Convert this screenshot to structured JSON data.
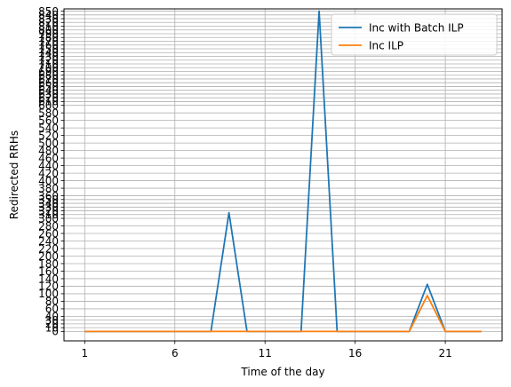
{
  "chart_data": {
    "type": "line",
    "xlabel": "Time of the day",
    "ylabel": "Redirected RRHs",
    "xlim": [
      -0.15,
      24.15
    ],
    "ylim": [
      -25,
      856
    ],
    "xticks": [
      1,
      6,
      11,
      16,
      21
    ],
    "yticks": [
      0,
      10,
      20,
      30,
      40,
      60,
      80,
      100,
      120,
      140,
      160,
      180,
      200,
      220,
      240,
      260,
      280,
      300,
      310,
      320,
      330,
      340,
      350,
      360,
      380,
      400,
      420,
      440,
      460,
      480,
      500,
      520,
      540,
      560,
      580,
      600,
      610,
      620,
      630,
      640,
      650,
      660,
      670,
      680,
      690,
      700,
      710,
      720,
      730,
      740,
      750,
      760,
      770,
      780,
      790,
      800,
      810,
      820,
      830,
      840,
      850
    ],
    "grid": true,
    "legend_position": "top-right",
    "x": [
      1,
      2,
      3,
      4,
      5,
      6,
      7,
      8,
      9,
      10,
      11,
      12,
      13,
      14,
      15,
      16,
      17,
      18,
      19,
      20,
      21,
      22,
      23
    ],
    "series": [
      {
        "name": "Inc with Batch ILP",
        "color": "#1f77b4",
        "values": [
          0,
          0,
          0,
          0,
          0,
          0,
          0,
          0,
          315,
          0,
          0,
          0,
          0,
          850,
          0,
          0,
          0,
          0,
          0,
          125,
          0,
          0,
          0
        ]
      },
      {
        "name": "Inc ILP",
        "color": "#ff7f0e",
        "values": [
          0,
          0,
          0,
          0,
          0,
          0,
          0,
          0,
          0,
          0,
          0,
          0,
          0,
          0,
          0,
          0,
          0,
          0,
          0,
          95,
          0,
          0,
          0
        ]
      }
    ]
  }
}
